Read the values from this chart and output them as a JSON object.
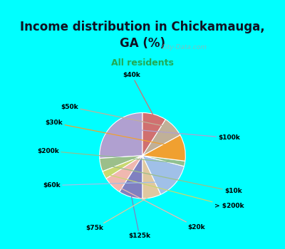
{
  "title": "Income distribution in Chickamauga,\nGA (%)",
  "subtitle": "All residents",
  "background_top": "#00FFFF",
  "background_chart_gradient_top": "#d8f0e8",
  "background_chart_gradient_bottom": "#e8f8f0",
  "labels": [
    "$100k",
    "$10k",
    "> $200k",
    "$20k",
    "$125k",
    "$75k",
    "$60k",
    "$200k",
    "$30k",
    "$50k",
    "$40k"
  ],
  "values": [
    26,
    5,
    3,
    7,
    9,
    7,
    14,
    2,
    10,
    8,
    9
  ],
  "colors": [
    "#b0a0d0",
    "#9bbf8a",
    "#c8d870",
    "#f0b8b0",
    "#8080c0",
    "#e0c8a0",
    "#a0c0e8",
    "#90c090",
    "#f0a030",
    "#c0b098",
    "#d07070"
  ],
  "startangle": 90,
  "watermark": "City-Data.com",
  "title_fontsize": 12,
  "subtitle_fontsize": 9,
  "label_fontsize": 6.5
}
